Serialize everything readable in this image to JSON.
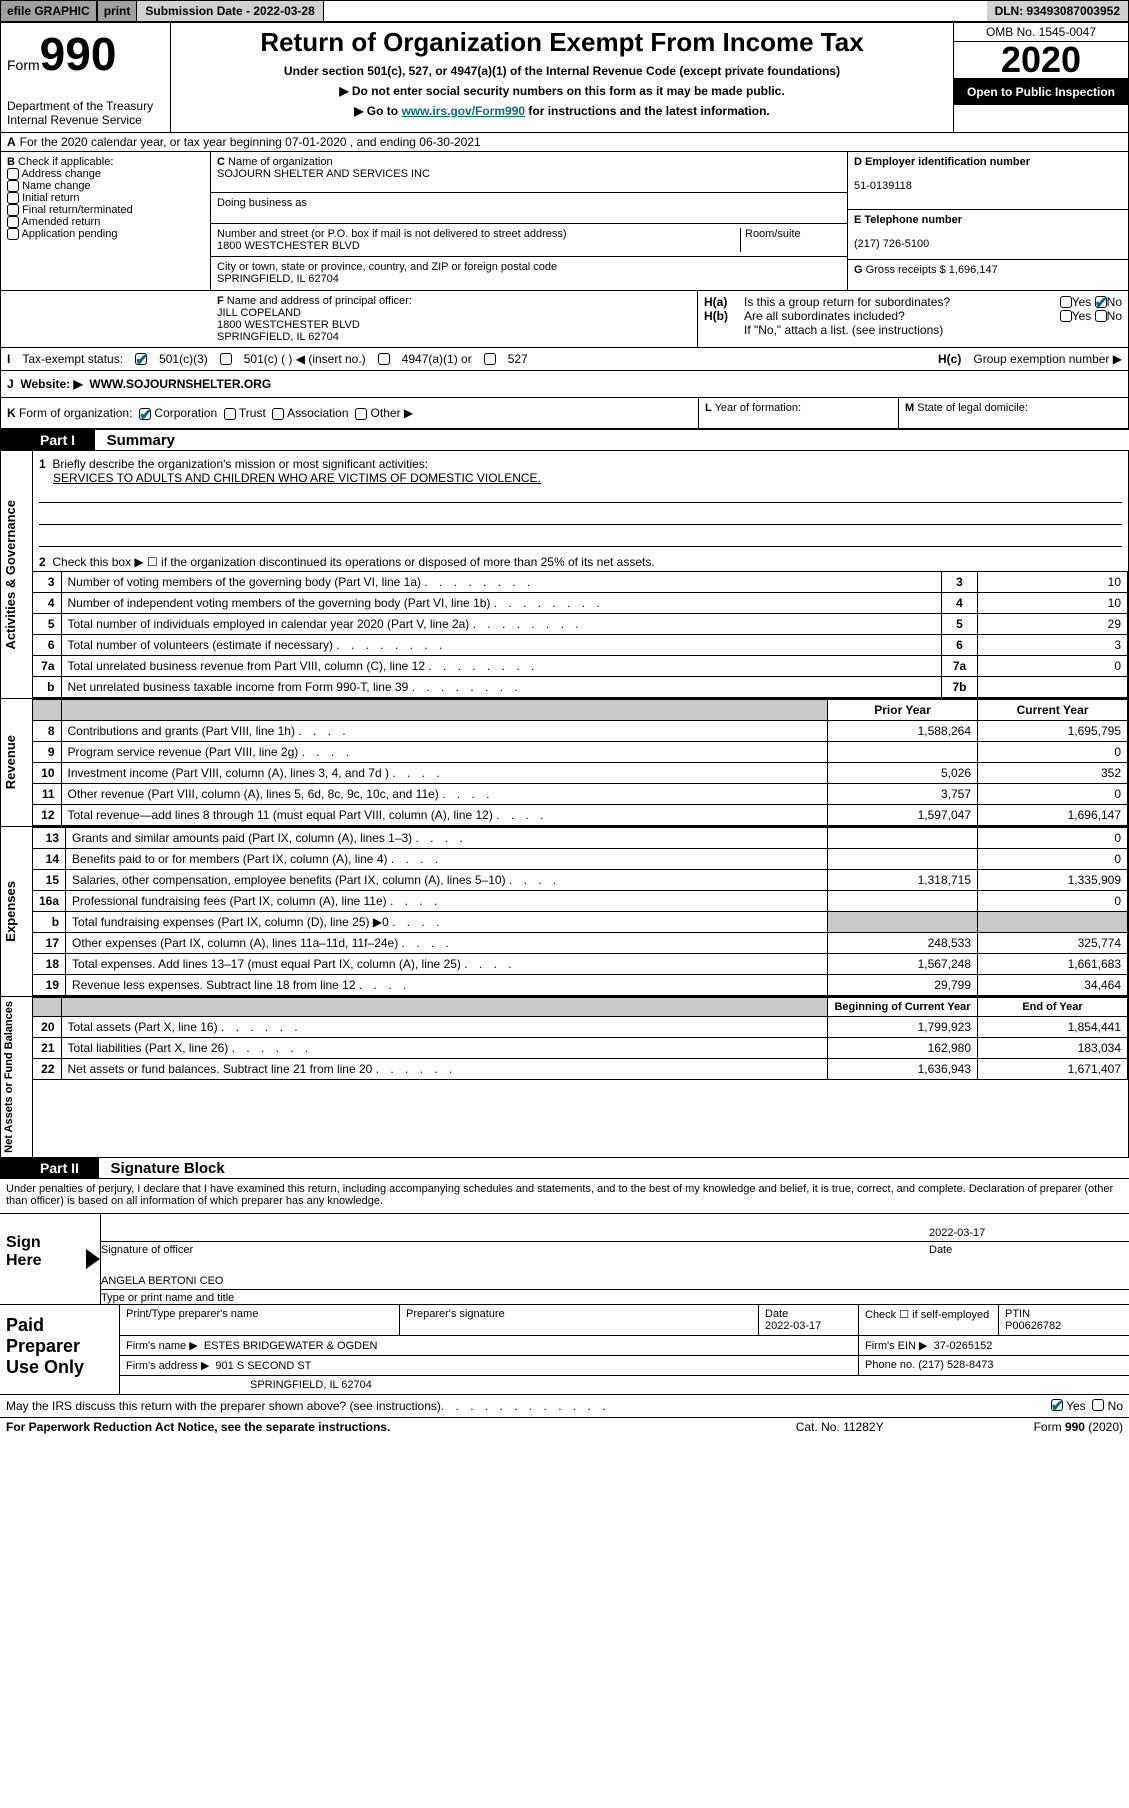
{
  "topbar": {
    "efile": "efile GRAPHIC",
    "print": "print",
    "sub_date_label": "Submission Date - 2022-03-28",
    "dln_label": "DLN: 93493087003952"
  },
  "header": {
    "form_word": "Form",
    "form_num": "990",
    "dept": "Department of the Treasury\nInternal Revenue Service",
    "title": "Return of Organization Exempt From Income Tax",
    "sub1": "Under section 501(c), 527, or 4947(a)(1) of the Internal Revenue Code (except private foundations)",
    "sub2": "▶ Do not enter social security numbers on this form as it may be made public.",
    "sub3_pre": "▶ Go to ",
    "sub3_link": "www.irs.gov/Form990",
    "sub3_post": " for instructions and the latest information.",
    "omb": "OMB No. 1545-0047",
    "year": "2020",
    "open_public": "Open to Public Inspection"
  },
  "row_a": {
    "label": "A",
    "text": "For the 2020 calendar year, or tax year beginning 07-01-2020    , and ending 06-30-2021"
  },
  "col_b": {
    "label": "B",
    "heading": "Check if applicable:",
    "items": [
      "Address change",
      "Name change",
      "Initial return",
      "Final return/terminated",
      "Amended return",
      "Application pending"
    ]
  },
  "col_c": {
    "c_label": "C",
    "name_label": "Name of organization",
    "org_name": "SOJOURN SHELTER AND SERVICES INC",
    "dba_label": "Doing business as",
    "addr_label": "Number and street (or P.O. box if mail is not delivered to street address)",
    "room_label": "Room/suite",
    "addr": "1800 WESTCHESTER BLVD",
    "city_label": "City or town, state or province, country, and ZIP or foreign postal code",
    "city": "SPRINGFIELD, IL  62704"
  },
  "col_d": {
    "d_label": "D Employer identification number",
    "ein": "51-0139118",
    "e_label": "E Telephone number",
    "phone": "(217) 726-5100",
    "g_label": "G",
    "g_text": "Gross receipts $ 1,696,147"
  },
  "row_f": {
    "f_label": "F",
    "f_text": "Name and address of principal officer:",
    "name": "JILL COPELAND",
    "addr1": "1800 WESTCHESTER BLVD",
    "addr2": "SPRINGFIELD, IL  62704"
  },
  "row_h": {
    "ha_label": "H(a)",
    "ha_text": "Is this a group return for subordinates?",
    "hb_label": "H(b)",
    "hb_text": "Are all subordinates included?",
    "hb_note": "If \"No,\" attach a list. (see instructions)",
    "hc_label": "H(c)",
    "hc_text": "Group exemption number ▶",
    "yes": "Yes",
    "no": "No"
  },
  "tax_status": {
    "label": "I",
    "text": "Tax-exempt status:",
    "opt1": "501(c)(3)",
    "opt2": "501(c) (   ) ◀ (insert no.)",
    "opt3": "4947(a)(1) or",
    "opt4": "527"
  },
  "website": {
    "label": "J",
    "text": "Website: ▶",
    "url": "WWW.SOJOURNSHELTER.ORG"
  },
  "row_k": {
    "label": "K",
    "text": "Form of organization:",
    "opts": [
      "Corporation",
      "Trust",
      "Association",
      "Other ▶"
    ]
  },
  "row_l": {
    "label": "L",
    "text": "Year of formation:",
    "m_label": "M",
    "m_text": "State of legal domicile:"
  },
  "part1": {
    "header": "Part I",
    "title": "Summary",
    "q1_num": "1",
    "q1": "Briefly describe the organization's mission or most significant activities:",
    "mission": "SERVICES TO ADULTS AND CHILDREN WHO ARE VICTIMS OF DOMESTIC VIOLENCE.",
    "q2_num": "2",
    "q2": "Check this box ▶ ☐  if the organization discontinued its operations or disposed of more than 25% of its net assets."
  },
  "governance": {
    "vlabel": "Activities & Governance",
    "rows": [
      {
        "n": "3",
        "t": "Number of voting members of the governing body (Part VI, line 1a)",
        "nr": "3",
        "v": "10"
      },
      {
        "n": "4",
        "t": "Number of independent voting members of the governing body (Part VI, line 1b)",
        "nr": "4",
        "v": "10"
      },
      {
        "n": "5",
        "t": "Total number of individuals employed in calendar year 2020 (Part V, line 2a)",
        "nr": "5",
        "v": "29"
      },
      {
        "n": "6",
        "t": "Total number of volunteers (estimate if necessary)",
        "nr": "6",
        "v": "3"
      },
      {
        "n": "7a",
        "t": "Total unrelated business revenue from Part VIII, column (C), line 12",
        "nr": "7a",
        "v": "0"
      },
      {
        "n": "b",
        "t": "Net unrelated business taxable income from Form 990-T, line 39",
        "nr": "7b",
        "v": ""
      }
    ]
  },
  "revenue": {
    "vlabel": "Revenue",
    "head_prior": "Prior Year",
    "head_current": "Current Year",
    "rows": [
      {
        "n": "8",
        "t": "Contributions and grants (Part VIII, line 1h)",
        "p": "1,588,264",
        "c": "1,695,795"
      },
      {
        "n": "9",
        "t": "Program service revenue (Part VIII, line 2g)",
        "p": "",
        "c": "0"
      },
      {
        "n": "10",
        "t": "Investment income (Part VIII, column (A), lines 3, 4, and 7d )",
        "p": "5,026",
        "c": "352"
      },
      {
        "n": "11",
        "t": "Other revenue (Part VIII, column (A), lines 5, 6d, 8c, 9c, 10c, and 11e)",
        "p": "3,757",
        "c": "0"
      },
      {
        "n": "12",
        "t": "Total revenue—add lines 8 through 11 (must equal Part VIII, column (A), line 12)",
        "p": "1,597,047",
        "c": "1,696,147"
      }
    ]
  },
  "expenses": {
    "vlabel": "Expenses",
    "rows": [
      {
        "n": "13",
        "t": "Grants and similar amounts paid (Part IX, column (A), lines 1–3)",
        "p": "",
        "c": "0"
      },
      {
        "n": "14",
        "t": "Benefits paid to or for members (Part IX, column (A), line 4)",
        "p": "",
        "c": "0"
      },
      {
        "n": "15",
        "t": "Salaries, other compensation, employee benefits (Part IX, column (A), lines 5–10)",
        "p": "1,318,715",
        "c": "1,335,909"
      },
      {
        "n": "16a",
        "t": "Professional fundraising fees (Part IX, column (A), line 11e)",
        "p": "",
        "c": "0"
      },
      {
        "n": "b",
        "t": "Total fundraising expenses (Part IX, column (D), line 25) ▶0",
        "p": "shaded",
        "c": "shaded"
      },
      {
        "n": "17",
        "t": "Other expenses (Part IX, column (A), lines 11a–11d, 11f–24e)",
        "p": "248,533",
        "c": "325,774"
      },
      {
        "n": "18",
        "t": "Total expenses. Add lines 13–17 (must equal Part IX, column (A), line 25)",
        "p": "1,567,248",
        "c": "1,661,683"
      },
      {
        "n": "19",
        "t": "Revenue less expenses. Subtract line 18 from line 12",
        "p": "29,799",
        "c": "34,464"
      }
    ]
  },
  "netassets": {
    "vlabel": "Net Assets or Fund Balances",
    "head_begin": "Beginning of Current Year",
    "head_end": "End of Year",
    "rows": [
      {
        "n": "20",
        "t": "Total assets (Part X, line 16)",
        "p": "1,799,923",
        "c": "1,854,441"
      },
      {
        "n": "21",
        "t": "Total liabilities (Part X, line 26)",
        "p": "162,980",
        "c": "183,034"
      },
      {
        "n": "22",
        "t": "Net assets or fund balances. Subtract line 21 from line 20",
        "p": "1,636,943",
        "c": "1,671,407"
      }
    ]
  },
  "part2": {
    "header": "Part II",
    "title": "Signature Block",
    "penalties": "Under penalties of perjury, I declare that I have examined this return, including accompanying schedules and statements, and to the best of my knowledge and belief, it is true, correct, and complete. Declaration of preparer (other than officer) is based on all information of which preparer has any knowledge."
  },
  "sign": {
    "label": "Sign Here",
    "sig_label": "Signature of officer",
    "date_label": "Date",
    "date_val": "2022-03-17",
    "name": "ANGELA BERTONI CEO",
    "name_label": "Type or print name and title"
  },
  "prep": {
    "label": "Paid Preparer Use Only",
    "col_print": "Print/Type preparer's name",
    "col_sig": "Preparer's signature",
    "col_date": "Date",
    "date_val": "2022-03-17",
    "check_label": "Check ☐  if self-employed",
    "ptin_label": "PTIN",
    "ptin": "P00626782",
    "firm_name_label": "Firm's name     ▶",
    "firm_name": "ESTES BRIDGEWATER & OGDEN",
    "firm_ein_label": "Firm's EIN ▶",
    "firm_ein": "37-0265152",
    "firm_addr_label": "Firm's address ▶",
    "firm_addr1": "901 S SECOND ST",
    "firm_addr2": "SPRINGFIELD, IL  62704",
    "phone_label": "Phone no. (217) 528-8473"
  },
  "discuss": {
    "text": "May the IRS discuss this return with the preparer shown above? (see instructions)",
    "yes": "Yes",
    "no": "No"
  },
  "footer": {
    "left": "For Paperwork Reduction Act Notice, see the separate instructions.",
    "mid": "Cat. No. 11282Y",
    "right": "Form 990 (2020)"
  }
}
